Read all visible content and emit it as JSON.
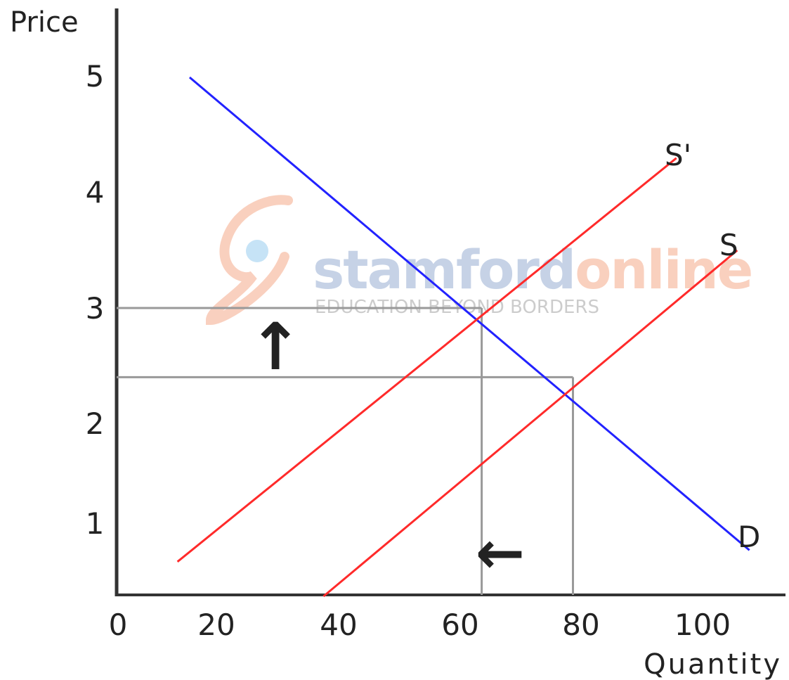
{
  "chart_data": {
    "type": "line",
    "ylabel": "Price",
    "xlabel": "Quantity",
    "xticks": [
      "0",
      "20",
      "40",
      "60",
      "80",
      "100"
    ],
    "yticks": [
      "1",
      "2",
      "3",
      "4",
      "5"
    ],
    "series": [
      {
        "name": "D",
        "color": "#2222ff",
        "points": [
          [
            12,
            5.0
          ],
          [
            104,
            0.9
          ]
        ]
      },
      {
        "name": "S'",
        "color": "#ff2a2a",
        "points": [
          [
            10,
            0.8
          ],
          [
            92,
            4.3
          ]
        ]
      },
      {
        "name": "S",
        "color": "#ff2a2a",
        "points": [
          [
            34,
            0.5
          ],
          [
            102,
            3.5
          ]
        ]
      }
    ],
    "reference_lines": {
      "price_levels": [
        3.0,
        2.4
      ],
      "quantity_levels": [
        60,
        75
      ],
      "color": "#999999"
    },
    "annotations": [
      {
        "name": "price-up-arrow",
        "symbol": "↑"
      },
      {
        "name": "quantity-left-arrow",
        "symbol": "←"
      }
    ],
    "grid": false,
    "legend": "none"
  },
  "watermark": {
    "brand_part1": "stamford",
    "brand_part2": "online",
    "tagline": "EDUCATION BEYOND BORDERS"
  }
}
